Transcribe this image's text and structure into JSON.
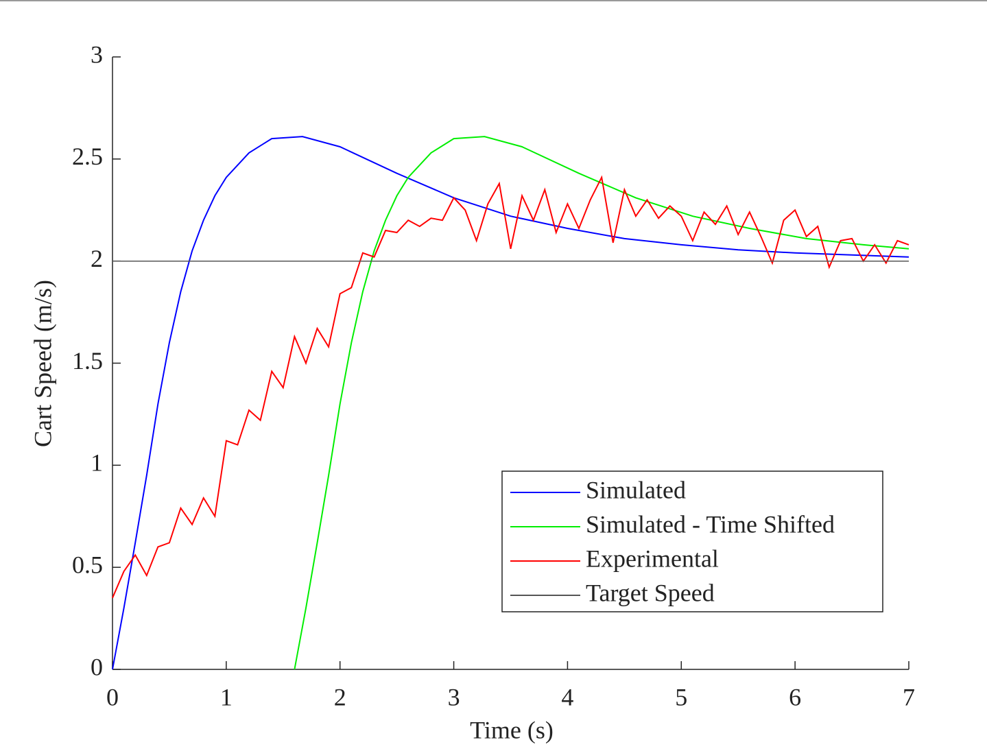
{
  "chart_data": {
    "type": "line",
    "xlabel": "Time (s)",
    "ylabel": "Cart Speed (m/s)",
    "xlim": [
      0,
      7
    ],
    "ylim": [
      0,
      3
    ],
    "xticks": [
      0,
      1,
      2,
      3,
      4,
      5,
      6,
      7
    ],
    "yticks": [
      0,
      0.5,
      1,
      1.5,
      2,
      2.5,
      3
    ],
    "legend": "southeast",
    "series": [
      {
        "name": "Simulated",
        "color": "#0000ff",
        "x": [
          0,
          0.1,
          0.2,
          0.3,
          0.4,
          0.5,
          0.6,
          0.7,
          0.8,
          0.9,
          1.0,
          1.2,
          1.4,
          1.67,
          2.0,
          2.5,
          3.0,
          3.5,
          4.0,
          4.5,
          5.0,
          5.5,
          6.0,
          6.5,
          7.0
        ],
        "values": [
          0,
          0.3,
          0.62,
          0.95,
          1.3,
          1.6,
          1.85,
          2.05,
          2.2,
          2.32,
          2.41,
          2.53,
          2.6,
          2.61,
          2.56,
          2.43,
          2.31,
          2.22,
          2.16,
          2.11,
          2.08,
          2.055,
          2.04,
          2.03,
          2.02
        ]
      },
      {
        "name": "Simulated - Time Shifted",
        "color": "#00ee00",
        "x": [
          1.6,
          1.7,
          1.8,
          1.9,
          2.0,
          2.1,
          2.2,
          2.3,
          2.4,
          2.5,
          2.6,
          2.8,
          3.0,
          3.27,
          3.6,
          4.1,
          4.6,
          5.1,
          5.6,
          6.1,
          6.6,
          7.0
        ],
        "values": [
          0,
          0.3,
          0.62,
          0.95,
          1.3,
          1.6,
          1.85,
          2.05,
          2.2,
          2.32,
          2.41,
          2.53,
          2.6,
          2.61,
          2.56,
          2.43,
          2.31,
          2.22,
          2.16,
          2.11,
          2.08,
          2.06
        ]
      },
      {
        "name": "Experimental",
        "color": "#ff0000",
        "x": [
          0,
          0.1,
          0.2,
          0.3,
          0.4,
          0.5,
          0.6,
          0.7,
          0.8,
          0.9,
          1.0,
          1.1,
          1.2,
          1.3,
          1.4,
          1.5,
          1.6,
          1.7,
          1.8,
          1.9,
          2.0,
          2.1,
          2.2,
          2.3,
          2.4,
          2.5,
          2.6,
          2.7,
          2.8,
          2.9,
          3.0,
          3.1,
          3.2,
          3.3,
          3.4,
          3.5,
          3.6,
          3.7,
          3.8,
          3.9,
          4.0,
          4.1,
          4.2,
          4.3,
          4.4,
          4.5,
          4.6,
          4.7,
          4.8,
          4.9,
          5.0,
          5.1,
          5.2,
          5.3,
          5.4,
          5.5,
          5.6,
          5.7,
          5.8,
          5.9,
          6.0,
          6.1,
          6.2,
          6.3,
          6.4,
          6.5,
          6.6,
          6.7,
          6.8,
          6.9,
          7.0
        ],
        "values": [
          0.35,
          0.48,
          0.56,
          0.46,
          0.6,
          0.62,
          0.79,
          0.71,
          0.84,
          0.75,
          1.12,
          1.1,
          1.27,
          1.22,
          1.46,
          1.38,
          1.63,
          1.5,
          1.67,
          1.58,
          1.84,
          1.87,
          2.04,
          2.02,
          2.15,
          2.14,
          2.2,
          2.17,
          2.21,
          2.2,
          2.31,
          2.25,
          2.1,
          2.28,
          2.38,
          2.06,
          2.32,
          2.2,
          2.35,
          2.14,
          2.28,
          2.16,
          2.3,
          2.41,
          2.09,
          2.35,
          2.22,
          2.3,
          2.21,
          2.27,
          2.22,
          2.1,
          2.24,
          2.18,
          2.27,
          2.13,
          2.24,
          2.12,
          1.99,
          2.2,
          2.25,
          2.12,
          2.17,
          1.97,
          2.1,
          2.11,
          2.0,
          2.08,
          1.99,
          2.1,
          2.08
        ]
      },
      {
        "name": "Target Speed",
        "color": "#555555",
        "x": [
          0,
          7
        ],
        "values": [
          2,
          2
        ]
      }
    ]
  }
}
